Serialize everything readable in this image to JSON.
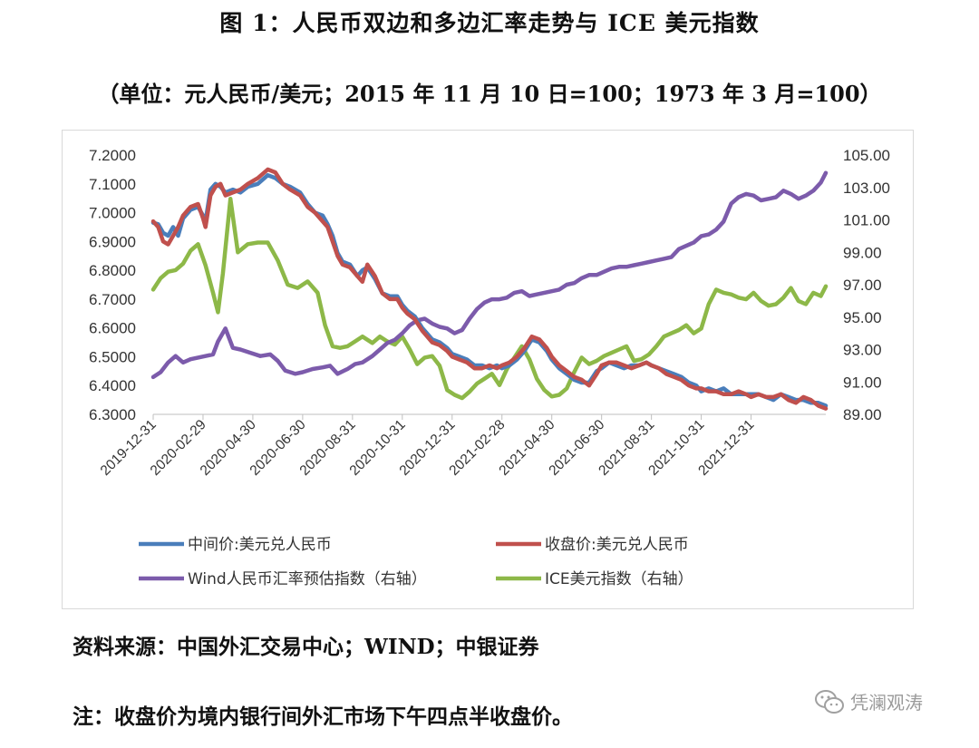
{
  "header": {
    "title": "图 1：人民币双边和多边汇率走势与 ICE 美元指数",
    "subtitle": "（单位：元人民币/美元；2015 年 11 月 10 日=100；1973 年 3 月=100）"
  },
  "footer": {
    "source": "资料来源：中国外汇交易中心；WIND；中银证券",
    "note": "注：收盘价为境内银行间外汇市场下午四点半收盘价。"
  },
  "watermark": {
    "text": "凭澜观涛",
    "icon": "wechat-icon"
  },
  "chart_data": {
    "type": "line",
    "title": "人民币双边和多边汇率走势与 ICE 美元指数",
    "left_axis": {
      "min": 6.3,
      "max": 7.2,
      "ticks": [
        "6.3000",
        "6.4000",
        "6.5000",
        "6.6000",
        "6.7000",
        "6.8000",
        "6.9000",
        "7.0000",
        "7.1000",
        "7.2000"
      ]
    },
    "right_axis": {
      "min": 89,
      "max": 105,
      "ticks": [
        "89.00",
        "91.00",
        "93.00",
        "95.00",
        "97.00",
        "99.00",
        "101.00",
        "103.00",
        "105.00"
      ]
    },
    "x_axis": {
      "start": 0,
      "end": 27,
      "unit": "months since 2019-12-31",
      "tick_months": [
        0,
        2,
        4,
        6,
        8,
        10,
        12,
        14,
        16,
        18,
        20,
        22,
        24
      ],
      "tick_labels": [
        "2019-12-31",
        "2020-02-29",
        "2020-04-30",
        "2020-06-30",
        "2020-08-31",
        "2020-10-31",
        "2020-12-31",
        "2021-02-28",
        "2021-04-30",
        "2021-06-30",
        "2021-08-31",
        "2021-10-31",
        "2021-12-31"
      ]
    },
    "series": [
      {
        "name": "中间价:美元兑人民币",
        "axis": "left",
        "color": "#4a7ebb",
        "x": [
          0,
          0.2,
          0.4,
          0.6,
          0.8,
          1,
          1.2,
          1.5,
          1.8,
          2,
          2.1,
          2.3,
          2.5,
          2.7,
          2.9,
          3.2,
          3.5,
          3.8,
          4.2,
          4.6,
          4.9,
          5.2,
          5.5,
          5.9,
          6.2,
          6.5,
          6.8,
          7,
          7.2,
          7.4,
          7.6,
          7.9,
          8.2,
          8.4,
          8.6,
          8.9,
          9.2,
          9.5,
          9.8,
          10,
          10.2,
          10.5,
          10.8,
          11,
          11.2,
          11.5,
          11.8,
          12,
          12.3,
          12.6,
          12.9,
          13.2,
          13.5,
          13.8,
          14,
          14.3,
          14.6,
          14.9,
          15.2,
          15.5,
          15.8,
          16,
          16.3,
          16.6,
          16.9,
          17.2,
          17.5,
          17.8,
          18,
          18.3,
          18.6,
          18.9,
          19.2,
          19.5,
          19.8,
          20,
          20.3,
          20.6,
          20.9,
          21.2,
          21.5,
          21.8,
          22,
          22.3,
          22.6,
          22.9,
          23.2,
          23.5,
          23.8,
          24,
          24.3,
          24.6,
          24.9,
          25.2,
          25.5,
          25.8,
          26.1,
          26.4,
          26.7,
          27
        ],
        "values": [
          6.965,
          6.96,
          6.93,
          6.92,
          6.95,
          6.92,
          6.98,
          7.01,
          7.02,
          6.99,
          6.97,
          7.08,
          7.1,
          7.09,
          7.07,
          7.08,
          7.07,
          7.09,
          7.1,
          7.13,
          7.12,
          7.1,
          7.09,
          7.07,
          7.03,
          7.0,
          6.99,
          6.96,
          6.92,
          6.86,
          6.83,
          6.82,
          6.78,
          6.8,
          6.81,
          6.77,
          6.72,
          6.71,
          6.71,
          6.68,
          6.66,
          6.64,
          6.6,
          6.58,
          6.56,
          6.55,
          6.53,
          6.51,
          6.5,
          6.49,
          6.47,
          6.47,
          6.46,
          6.47,
          6.46,
          6.47,
          6.49,
          6.52,
          6.56,
          6.55,
          6.52,
          6.49,
          6.46,
          6.44,
          6.42,
          6.41,
          6.41,
          6.45,
          6.46,
          6.48,
          6.47,
          6.46,
          6.47,
          6.47,
          6.48,
          6.47,
          6.46,
          6.45,
          6.44,
          6.43,
          6.41,
          6.4,
          6.38,
          6.39,
          6.38,
          6.39,
          6.37,
          6.37,
          6.37,
          6.37,
          6.37,
          6.36,
          6.35,
          6.37,
          6.36,
          6.35,
          6.35,
          6.34,
          6.34,
          6.33
        ]
      },
      {
        "name": "收盘价:美元兑人民币",
        "axis": "left",
        "color": "#c0504d",
        "x": [
          0,
          0.2,
          0.4,
          0.6,
          0.8,
          1,
          1.2,
          1.5,
          1.8,
          2,
          2.1,
          2.3,
          2.5,
          2.7,
          2.9,
          3.2,
          3.5,
          3.8,
          4.2,
          4.6,
          4.9,
          5.2,
          5.5,
          5.9,
          6.2,
          6.5,
          6.8,
          7,
          7.2,
          7.4,
          7.6,
          7.9,
          8.2,
          8.4,
          8.6,
          8.9,
          9.2,
          9.5,
          9.8,
          10,
          10.2,
          10.5,
          10.8,
          11,
          11.2,
          11.5,
          11.8,
          12,
          12.3,
          12.6,
          12.9,
          13.2,
          13.5,
          13.8,
          14,
          14.3,
          14.6,
          14.9,
          15.2,
          15.5,
          15.8,
          16,
          16.3,
          16.6,
          16.9,
          17.2,
          17.5,
          17.8,
          18,
          18.3,
          18.6,
          18.9,
          19.2,
          19.5,
          19.8,
          20,
          20.3,
          20.6,
          20.9,
          21.2,
          21.5,
          21.8,
          22,
          22.3,
          22.6,
          22.9,
          23.2,
          23.5,
          23.8,
          24,
          24.3,
          24.6,
          24.9,
          25.2,
          25.5,
          25.8,
          26.1,
          26.4,
          26.7,
          27
        ],
        "values": [
          6.97,
          6.95,
          6.9,
          6.89,
          6.92,
          6.95,
          6.99,
          7.02,
          7.03,
          6.98,
          6.95,
          7.06,
          7.09,
          7.1,
          7.06,
          7.07,
          7.08,
          7.1,
          7.12,
          7.15,
          7.14,
          7.1,
          7.08,
          7.06,
          7.02,
          7.0,
          6.97,
          6.95,
          6.9,
          6.85,
          6.82,
          6.81,
          6.78,
          6.76,
          6.82,
          6.78,
          6.72,
          6.7,
          6.7,
          6.67,
          6.65,
          6.63,
          6.59,
          6.57,
          6.55,
          6.54,
          6.52,
          6.5,
          6.49,
          6.48,
          6.46,
          6.46,
          6.47,
          6.46,
          6.47,
          6.48,
          6.5,
          6.53,
          6.57,
          6.56,
          6.53,
          6.5,
          6.47,
          6.45,
          6.43,
          6.42,
          6.4,
          6.44,
          6.47,
          6.48,
          6.48,
          6.47,
          6.46,
          6.47,
          6.48,
          6.47,
          6.46,
          6.44,
          6.43,
          6.42,
          6.4,
          6.39,
          6.39,
          6.38,
          6.38,
          6.37,
          6.37,
          6.38,
          6.37,
          6.36,
          6.37,
          6.36,
          6.36,
          6.37,
          6.35,
          6.34,
          6.36,
          6.35,
          6.33,
          6.32
        ]
      },
      {
        "name": "Wind人民币汇率预估指数（右轴）",
        "axis": "right",
        "color": "#7c5bab",
        "x": [
          0,
          0.3,
          0.6,
          0.9,
          1.2,
          1.5,
          1.8,
          2.1,
          2.4,
          2.6,
          2.9,
          3.2,
          3.5,
          3.9,
          4.3,
          4.7,
          5,
          5.3,
          5.7,
          6,
          6.4,
          6.8,
          7.1,
          7.4,
          7.8,
          8.1,
          8.4,
          8.8,
          9.1,
          9.4,
          9.7,
          10,
          10.3,
          10.6,
          10.9,
          11.2,
          11.5,
          11.8,
          12.1,
          12.4,
          12.7,
          13,
          13.3,
          13.6,
          13.9,
          14.2,
          14.5,
          14.8,
          15.1,
          15.4,
          15.7,
          16,
          16.3,
          16.6,
          16.9,
          17.2,
          17.5,
          17.8,
          18.1,
          18.4,
          18.7,
          19,
          19.3,
          19.6,
          19.9,
          20.2,
          20.5,
          20.8,
          21.1,
          21.4,
          21.7,
          22,
          22.3,
          22.6,
          22.9,
          23.2,
          23.5,
          23.8,
          24.1,
          24.4,
          24.7,
          25,
          25.3,
          25.6,
          25.9,
          26.2,
          26.5,
          26.8,
          27
        ],
        "values": [
          91.3,
          91.6,
          92.2,
          92.6,
          92.2,
          92.4,
          92.5,
          92.6,
          92.7,
          93.5,
          94.3,
          93.1,
          93.0,
          92.8,
          92.6,
          92.7,
          92.3,
          91.7,
          91.5,
          91.6,
          91.8,
          91.9,
          92.0,
          91.5,
          91.8,
          92.1,
          92.2,
          92.6,
          93.0,
          93.4,
          93.6,
          94.0,
          94.5,
          94.8,
          94.9,
          94.6,
          94.4,
          94.3,
          94.0,
          94.2,
          94.9,
          95.5,
          95.9,
          96.1,
          96.1,
          96.2,
          96.5,
          96.6,
          96.3,
          96.4,
          96.5,
          96.6,
          96.7,
          97.0,
          97.1,
          97.4,
          97.6,
          97.6,
          97.8,
          98.0,
          98.1,
          98.1,
          98.2,
          98.3,
          98.4,
          98.5,
          98.6,
          98.7,
          99.2,
          99.4,
          99.6,
          100.0,
          100.1,
          100.4,
          100.9,
          102.0,
          102.4,
          102.6,
          102.5,
          102.2,
          102.3,
          102.4,
          102.8,
          102.6,
          102.3,
          102.5,
          102.8,
          103.3,
          103.9
        ]
      },
      {
        "name": "ICE美元指数（右轴）",
        "axis": "right",
        "color": "#8db848",
        "x": [
          0,
          0.3,
          0.6,
          0.9,
          1.2,
          1.5,
          1.8,
          2.1,
          2.4,
          2.6,
          2.8,
          3.1,
          3.4,
          3.8,
          4.2,
          4.6,
          5,
          5.4,
          5.8,
          6.2,
          6.6,
          6.9,
          7.2,
          7.5,
          7.8,
          8.1,
          8.4,
          8.8,
          9.1,
          9.4,
          9.7,
          10,
          10.3,
          10.6,
          10.9,
          11.2,
          11.5,
          11.8,
          12.1,
          12.4,
          12.7,
          13,
          13.3,
          13.6,
          13.9,
          14.2,
          14.5,
          14.8,
          15.1,
          15.4,
          15.7,
          16,
          16.3,
          16.6,
          16.9,
          17.2,
          17.5,
          17.8,
          18.1,
          18.4,
          18.7,
          19,
          19.3,
          19.6,
          19.9,
          20.2,
          20.5,
          20.8,
          21.1,
          21.4,
          21.7,
          22,
          22.3,
          22.6,
          22.9,
          23.2,
          23.5,
          23.8,
          24.1,
          24.4,
          24.7,
          25,
          25.3,
          25.6,
          25.9,
          26.2,
          26.5,
          26.8,
          27
        ],
        "values": [
          96.7,
          97.4,
          97.8,
          97.9,
          98.3,
          99.1,
          99.5,
          98.2,
          96.5,
          95.3,
          97.7,
          102.3,
          99.0,
          99.5,
          99.6,
          99.6,
          98.5,
          97.0,
          96.8,
          97.2,
          96.5,
          94.5,
          93.2,
          93.1,
          93.2,
          93.5,
          93.8,
          93.4,
          93.8,
          93.5,
          93.3,
          93.8,
          93.0,
          92.1,
          92.5,
          92.6,
          92.0,
          90.5,
          90.2,
          90.0,
          90.4,
          90.9,
          91.2,
          91.5,
          90.8,
          91.8,
          92.5,
          93.2,
          92.4,
          91.2,
          90.5,
          90.1,
          90.2,
          90.6,
          91.6,
          92.5,
          92.1,
          92.3,
          92.6,
          92.8,
          93.0,
          93.2,
          92.3,
          92.4,
          92.7,
          93.2,
          93.8,
          94.0,
          94.2,
          94.5,
          94.0,
          94.3,
          95.8,
          96.7,
          96.5,
          96.4,
          96.2,
          96.1,
          96.5,
          96.0,
          95.7,
          95.8,
          96.2,
          96.8,
          96.0,
          95.8,
          96.5,
          96.3,
          96.9
        ]
      }
    ]
  }
}
